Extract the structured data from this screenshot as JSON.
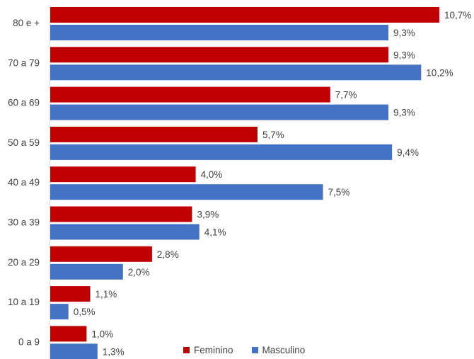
{
  "chart_data": {
    "type": "bar",
    "orientation": "horizontal",
    "categories": [
      "80 e +",
      "70 a 79",
      "60 a 69",
      "50 a 59",
      "40 a 49",
      "30 a 39",
      "20 a 29",
      "10 a 19",
      "0 a 9"
    ],
    "series": [
      {
        "name": "Feminino",
        "color": "#c00000",
        "values": [
          10.7,
          9.3,
          7.7,
          5.7,
          4.0,
          3.9,
          2.8,
          1.1,
          1.0
        ],
        "labels": [
          "10,7%",
          "9,3%",
          "7,7%",
          "5,7%",
          "4,0%",
          "3,9%",
          "2,8%",
          "1,1%",
          "1,0%"
        ]
      },
      {
        "name": "Masculino",
        "color": "#4472c4",
        "values": [
          9.3,
          10.2,
          9.3,
          9.4,
          7.5,
          4.1,
          2.0,
          0.5,
          1.3
        ],
        "labels": [
          "9,3%",
          "10,2%",
          "9,3%",
          "9,4%",
          "7,5%",
          "4,1%",
          "2,0%",
          "0,5%",
          "1,3%"
        ]
      }
    ],
    "xlim": [
      0,
      10.7
    ],
    "grid": false,
    "legend_position": "bottom"
  }
}
